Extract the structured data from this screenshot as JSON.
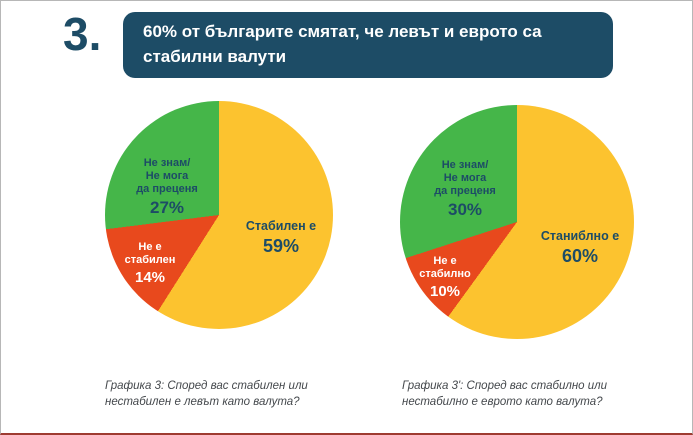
{
  "header": {
    "number": "3.",
    "title": "60% от българите смятат, че левът и еврото са стабилни валути"
  },
  "colors": {
    "navy": "#1D4C66",
    "pie_yellow": "#FCC32F",
    "pie_red": "#E8491D",
    "pie_green": "#45B649",
    "banner_text": "#FFFFFF",
    "caption_text": "#44484C"
  },
  "chart_data": [
    {
      "type": "pie",
      "title": "Графика 3: Според вас стабилен или нестабилен е левът като валута?",
      "legend_position": "none",
      "start_angle_deg": 0,
      "direction": "clockwise",
      "slices": [
        {
          "label": "Стабилен е",
          "display_label": "Стабилен е",
          "value": 59,
          "pct_display": "59%",
          "color": "#FCC32F",
          "text_color": "#1D4C66"
        },
        {
          "label": "Не е стабилен",
          "display_label": "Не е\nстабилен",
          "value": 14,
          "pct_display": "14%",
          "color": "#E8491D",
          "text_color": "#FFFFFF"
        },
        {
          "label": "Не знам/Не мога да преценя",
          "display_label": "Не знам/\nНе мога\nда преценя",
          "value": 27,
          "pct_display": "27%",
          "color": "#45B649",
          "text_color": "#1D4C66"
        }
      ]
    },
    {
      "type": "pie",
      "title": "Графика 3': Според вас стабилно или нестабилно е еврото като валута?",
      "legend_position": "none",
      "start_angle_deg": 0,
      "direction": "clockwise",
      "slices": [
        {
          "label": "Станиблно е",
          "display_label": "Станиблно е",
          "value": 60,
          "pct_display": "60%",
          "color": "#FCC32F",
          "text_color": "#1D4C66"
        },
        {
          "label": "Не е стабилно",
          "display_label": "Не е\nстабилно",
          "value": 10,
          "pct_display": "10%",
          "color": "#E8491D",
          "text_color": "#FFFFFF"
        },
        {
          "label": "Не знам/Не мога да преценя",
          "display_label": "Не знам/\nНе мога\nда преценя",
          "value": 30,
          "pct_display": "30%",
          "color": "#45B649",
          "text_color": "#1D4C66"
        }
      ]
    }
  ]
}
